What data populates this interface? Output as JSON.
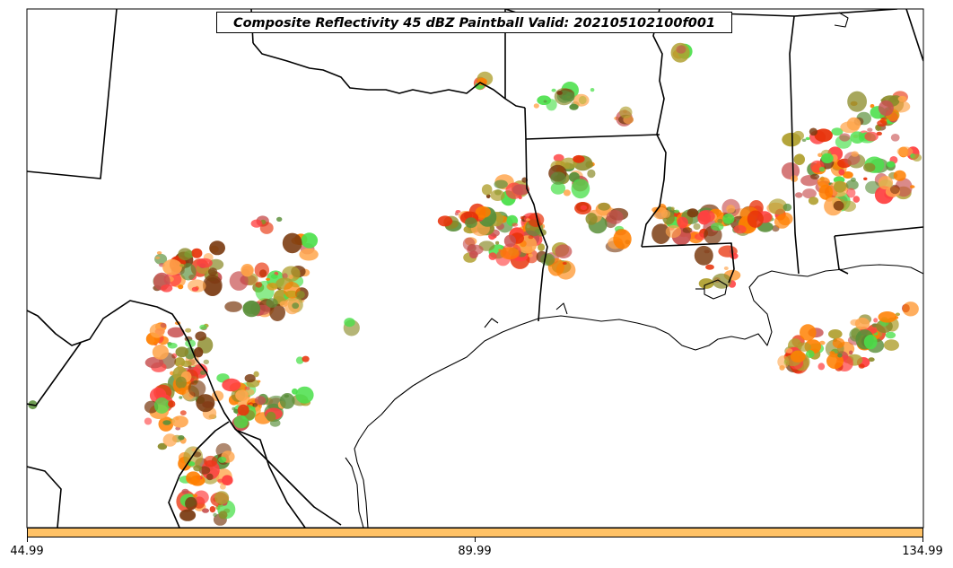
{
  "title": "Composite Reflectivity 45 dBZ Paintball Valid: 202105102100f001",
  "colorbar": {
    "color": "#ffc266",
    "ticks": [
      "44.99",
      "89.99",
      "134.99"
    ]
  },
  "palette": [
    "#ff7f00",
    "#e8320a",
    "#ff4040",
    "#4be04b",
    "#5a8f3a",
    "#8b8b2a",
    "#ffa64d",
    "#7a3a10",
    "#b0a030",
    "#c85050"
  ]
}
